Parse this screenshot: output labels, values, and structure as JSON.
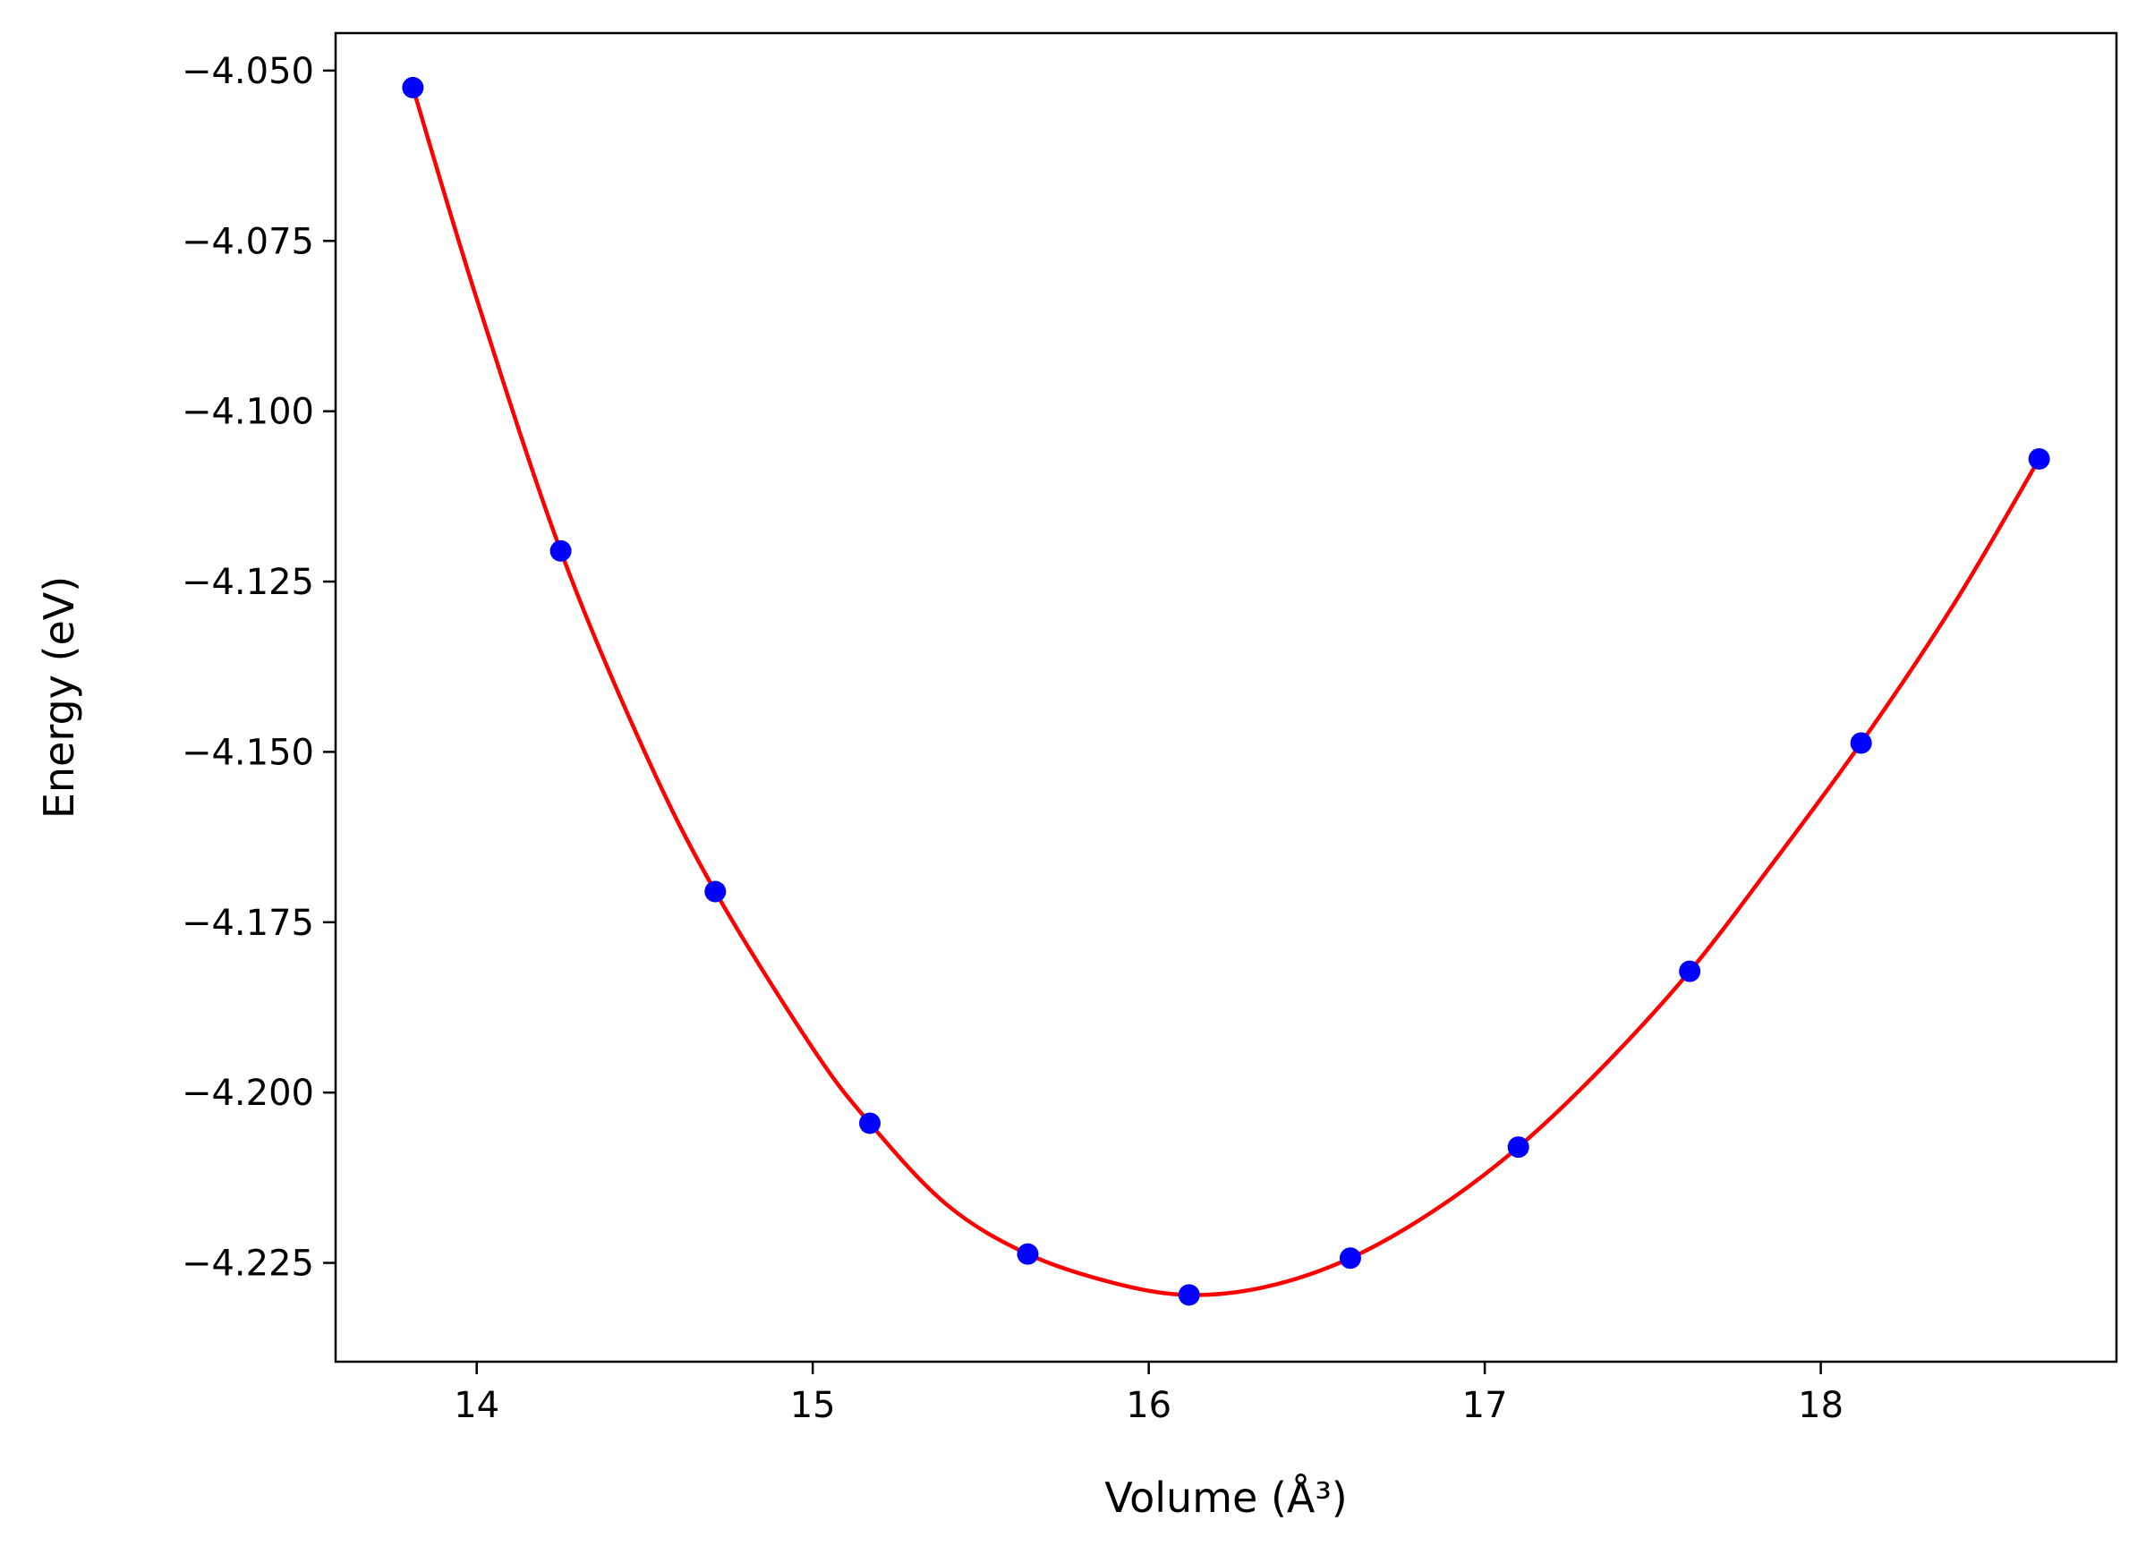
{
  "chart_data": {
    "type": "scatter",
    "title": "",
    "xlabel": "Volume (Å³)",
    "ylabel": "Energy (eV)",
    "xlim": [
      13.58,
      18.88
    ],
    "ylim": [
      -4.2395,
      -4.0445
    ],
    "xticks": [
      14,
      15,
      16,
      17,
      18
    ],
    "xtick_labels": [
      "14",
      "15",
      "16",
      "17",
      "18"
    ],
    "yticks": [
      -4.05,
      -4.075,
      -4.1,
      -4.125,
      -4.15,
      -4.175,
      -4.2,
      -4.225
    ],
    "ytick_labels": [
      "−4.050",
      "−4.075",
      "−4.100",
      "−4.125",
      "−4.150",
      "−4.175",
      "−4.200",
      "−4.225"
    ],
    "grid": false,
    "legend": "none",
    "series": [
      {
        "kind": "points",
        "color": "#0000ff",
        "x": [
          13.81,
          14.25,
          14.71,
          15.17,
          15.64,
          16.12,
          16.6,
          17.1,
          17.61,
          18.12,
          18.65
        ],
        "y": [
          -4.0525,
          -4.1205,
          -4.1705,
          -4.2045,
          -4.2237,
          -4.2297,
          -4.2243,
          -4.208,
          -4.1822,
          -4.1487,
          -4.107
        ]
      },
      {
        "kind": "fit-curve",
        "color": "#ff0000",
        "x": [
          13.81,
          14.0,
          14.25,
          14.5,
          14.71,
          15.0,
          15.17,
          15.4,
          15.64,
          15.9,
          16.12,
          16.35,
          16.6,
          16.85,
          17.1,
          17.35,
          17.61,
          17.85,
          18.12,
          18.4,
          18.65
        ],
        "y": [
          -4.0525,
          -4.0835,
          -4.1205,
          -4.15,
          -4.1705,
          -4.1935,
          -4.2045,
          -4.2165,
          -4.2237,
          -4.228,
          -4.2297,
          -4.2285,
          -4.2243,
          -4.2173,
          -4.208,
          -4.1963,
          -4.1822,
          -4.1668,
          -4.1487,
          -4.128,
          -4.107
        ]
      }
    ],
    "colors": {
      "frame": "#000000",
      "background": "#ffffff"
    }
  }
}
